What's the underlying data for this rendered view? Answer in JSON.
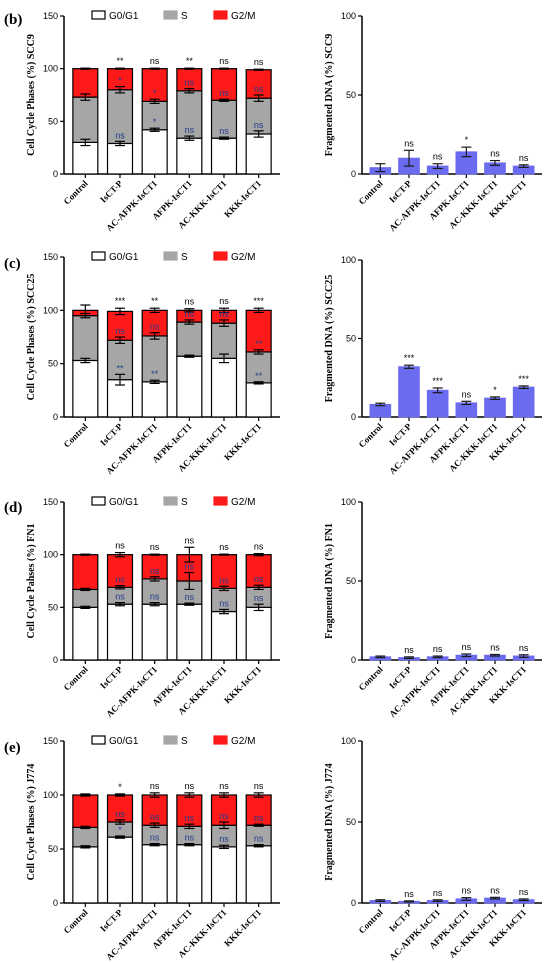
{
  "colors": {
    "g0g1": "#ffffff",
    "s": "#a6a6a6",
    "g2m": "#ff1a1a",
    "dna": "#6b6bf0",
    "axis": "#000000"
  },
  "chart_data": [
    {
      "type": "bar",
      "stacked": true,
      "panel": "(b)",
      "ylabel": "Cell Cycle Phases (%) SCC9",
      "ylim": [
        0,
        150
      ],
      "yticks": [
        0,
        50,
        100,
        150
      ],
      "legend": [
        "G0/G1",
        "S",
        "G2/M"
      ],
      "legend_position": "top",
      "categories": [
        "Control",
        "IsCT-P",
        "AC-AFPK-IsCT1",
        "AFPK-IsCT1",
        "AC-KKK-IsCT1",
        "KKK-IsCT1"
      ],
      "series": [
        {
          "name": "G0/G1",
          "values": [
            30,
            29,
            42,
            34,
            34,
            38
          ],
          "errors": [
            3,
            2,
            1.5,
            2,
            1,
            3
          ]
        },
        {
          "name": "S",
          "values": [
            43,
            51,
            27,
            45,
            36,
            34
          ],
          "errors": [
            3,
            3,
            2,
            2,
            1,
            3
          ]
        },
        {
          "name": "G2/M",
          "values": [
            27,
            20,
            31,
            21,
            30,
            27
          ],
          "errors": [
            0.5,
            0.5,
            0.5,
            0.5,
            0.5,
            0.5
          ]
        }
      ],
      "annotations": {
        "top": [
          "",
          "**",
          "ns",
          "**",
          "ns",
          "ns"
        ],
        "s": [
          "",
          "*",
          "*",
          "ns",
          "ns",
          "ns"
        ],
        "g0": [
          "",
          "ns",
          "*",
          "ns",
          "ns",
          "ns"
        ]
      }
    },
    {
      "type": "bar",
      "panel": "",
      "ylabel": "Fragmented DNA (%) SCC9",
      "ylim": [
        0,
        100
      ],
      "yticks": [
        0,
        50,
        100
      ],
      "categories": [
        "Control",
        "IsCT-P",
        "AC-AFPK-IsCT1",
        "AFPK-IsCT1",
        "AC-KKK-IsCT1",
        "KKK-IsCT1"
      ],
      "values": [
        4,
        10,
        5,
        14,
        7,
        5
      ],
      "errors": [
        2.5,
        5,
        1.5,
        3,
        1.5,
        0.8
      ],
      "annotations": [
        "",
        "ns",
        "ns",
        "*",
        "ns",
        "ns"
      ]
    },
    {
      "type": "bar",
      "stacked": true,
      "panel": "(c)",
      "ylabel": "Cell Cycle Phases (%) SCC25",
      "ylim": [
        0,
        150
      ],
      "yticks": [
        0,
        50,
        100,
        150
      ],
      "legend": [
        "G0/G1",
        "S",
        "G2/M"
      ],
      "legend_position": "top",
      "categories": [
        "Control",
        "IsCT-P",
        "AC-AFPK-IsCT1",
        "AFPK-IsCT1",
        "AC-KKK-IsCT1",
        "KKK-IsCT1"
      ],
      "series": [
        {
          "name": "G0/G1",
          "values": [
            53,
            35,
            33,
            57,
            55,
            32
          ],
          "errors": [
            2,
            5,
            1.5,
            1,
            4,
            1
          ]
        },
        {
          "name": "S",
          "values": [
            42,
            37,
            43,
            32,
            33,
            29
          ],
          "errors": [
            2,
            3,
            3,
            2,
            3,
            2
          ]
        },
        {
          "name": "G2/M",
          "values": [
            5,
            27,
            24,
            11,
            12,
            39
          ],
          "errors": [
            5,
            3,
            2,
            1.5,
            2,
            2
          ]
        }
      ],
      "annotations": {
        "top": [
          "",
          "***",
          "**",
          "ns",
          "ns",
          "***"
        ],
        "s": [
          "",
          "ns",
          "ns",
          "ns",
          "ns",
          "**"
        ],
        "g0": [
          "",
          "**",
          "**",
          "",
          "",
          "**"
        ]
      }
    },
    {
      "type": "bar",
      "panel": "",
      "ylabel": "Fragmented DNA (%) SCC25",
      "ylim": [
        0,
        100
      ],
      "yticks": [
        0,
        50,
        100
      ],
      "categories": [
        "Control",
        "IsCT-P",
        "AC-AFPK-IsCT1",
        "AFPK-IsCT1",
        "AC-KKK-IsCT1",
        "KKK-IsCT1"
      ],
      "values": [
        8,
        32,
        17,
        9,
        12,
        19
      ],
      "errors": [
        0.8,
        1,
        1.5,
        1,
        0.8,
        0.8
      ],
      "annotations": [
        "",
        "***",
        "***",
        "ns",
        "*",
        "***"
      ]
    },
    {
      "type": "bar",
      "stacked": true,
      "panel": "(d)",
      "ylabel": "Cell Cycle Pahses (%) FN1",
      "ylim": [
        0,
        150
      ],
      "yticks": [
        0,
        50,
        100,
        150
      ],
      "legend": [
        "G0/G1",
        "S",
        "G2/M"
      ],
      "legend_position": "top",
      "categories": [
        "Control",
        "IsCT-P",
        "AC-AFPK-IsCT1",
        "AFPK-IsCT1",
        "AC-KKK-IsCT1",
        "KKK-IsCT1"
      ],
      "series": [
        {
          "name": "G0/G1",
          "values": [
            50,
            53,
            53,
            53,
            46,
            50
          ],
          "errors": [
            1,
            1.5,
            1.5,
            1,
            2,
            3
          ]
        },
        {
          "name": "S",
          "values": [
            17,
            16,
            24,
            22,
            22,
            19
          ],
          "errors": [
            1,
            1.5,
            2,
            8,
            2,
            2
          ]
        },
        {
          "name": "G2/M",
          "values": [
            33,
            31,
            23,
            25,
            32,
            31
          ],
          "errors": [
            0.5,
            2,
            0.5,
            7,
            0.5,
            1
          ]
        }
      ],
      "annotations": {
        "top": [
          "",
          "ns",
          "ns",
          "ns",
          "ns",
          "ns"
        ],
        "s": [
          "",
          "ns",
          "ns",
          "ns",
          "ns",
          "ns"
        ],
        "g0": [
          "",
          "ns",
          "ns",
          "ns",
          "ns",
          "ns"
        ]
      }
    },
    {
      "type": "bar",
      "panel": "",
      "ylabel": "Fragmented DNA (%) FN1",
      "ylim": [
        0,
        100
      ],
      "yticks": [
        0,
        50,
        100
      ],
      "categories": [
        "Control",
        "IsCT-P",
        "AC-AFPK-IsCT1",
        "AFPK-IsCT1",
        "AC-KKK-IsCT1",
        "KKK-IsCT1"
      ],
      "values": [
        2,
        1.5,
        2,
        3,
        3,
        2.5
      ],
      "errors": [
        0.5,
        0.5,
        0.5,
        0.8,
        0.5,
        0.8
      ],
      "annotations": [
        "",
        "ns",
        "ns",
        "ns",
        "ns",
        "ns"
      ]
    },
    {
      "type": "bar",
      "stacked": true,
      "panel": "(e)",
      "ylabel": "Cell Cycle Phases (%) J774",
      "ylim": [
        0,
        150
      ],
      "yticks": [
        0,
        50,
        100,
        150
      ],
      "legend": [
        "G0/G1",
        "S",
        "G2/M"
      ],
      "legend_position": "top",
      "categories": [
        "Control",
        "IsCT-P",
        "AC-AFPK-IsCT1",
        "AFPK-IsCT1",
        "AC-KKK-IsCT1",
        "KKK-IsCT1"
      ],
      "series": [
        {
          "name": "G0/G1",
          "values": [
            52,
            61,
            54,
            54,
            52,
            53
          ],
          "errors": [
            1,
            1,
            1,
            1,
            1.5,
            1
          ]
        },
        {
          "name": "S",
          "values": [
            18,
            14,
            18,
            17,
            20,
            19
          ],
          "errors": [
            1,
            2,
            2,
            2,
            3,
            1
          ]
        },
        {
          "name": "G2/M",
          "values": [
            30,
            25,
            28,
            29,
            28,
            28
          ],
          "errors": [
            1,
            1,
            2,
            2,
            2,
            2
          ]
        }
      ],
      "annotations": {
        "top": [
          "",
          "*",
          "ns",
          "ns",
          "ns",
          "ns"
        ],
        "s": [
          "",
          "ns",
          "ns",
          "ns",
          "ns",
          "ns"
        ],
        "g0": [
          "",
          "*",
          "ns",
          "ns",
          "ns",
          "ns"
        ]
      }
    },
    {
      "type": "bar",
      "panel": "",
      "ylabel": "Fragmented DNA (%) J774",
      "ylim": [
        0,
        100
      ],
      "yticks": [
        0,
        50,
        100
      ],
      "categories": [
        "Control",
        "IsCT-P",
        "AC-AFPK-IsCT1",
        "AFPK-IsCT1",
        "AC-KKK-IsCT1",
        "KKK-IsCT1"
      ],
      "values": [
        1.5,
        1,
        1.5,
        2.5,
        3,
        2
      ],
      "errors": [
        0.5,
        0.3,
        0.5,
        0.8,
        0.5,
        0.5
      ],
      "annotations": [
        "",
        "ns",
        "ns",
        "ns",
        "ns",
        "ns"
      ]
    }
  ]
}
